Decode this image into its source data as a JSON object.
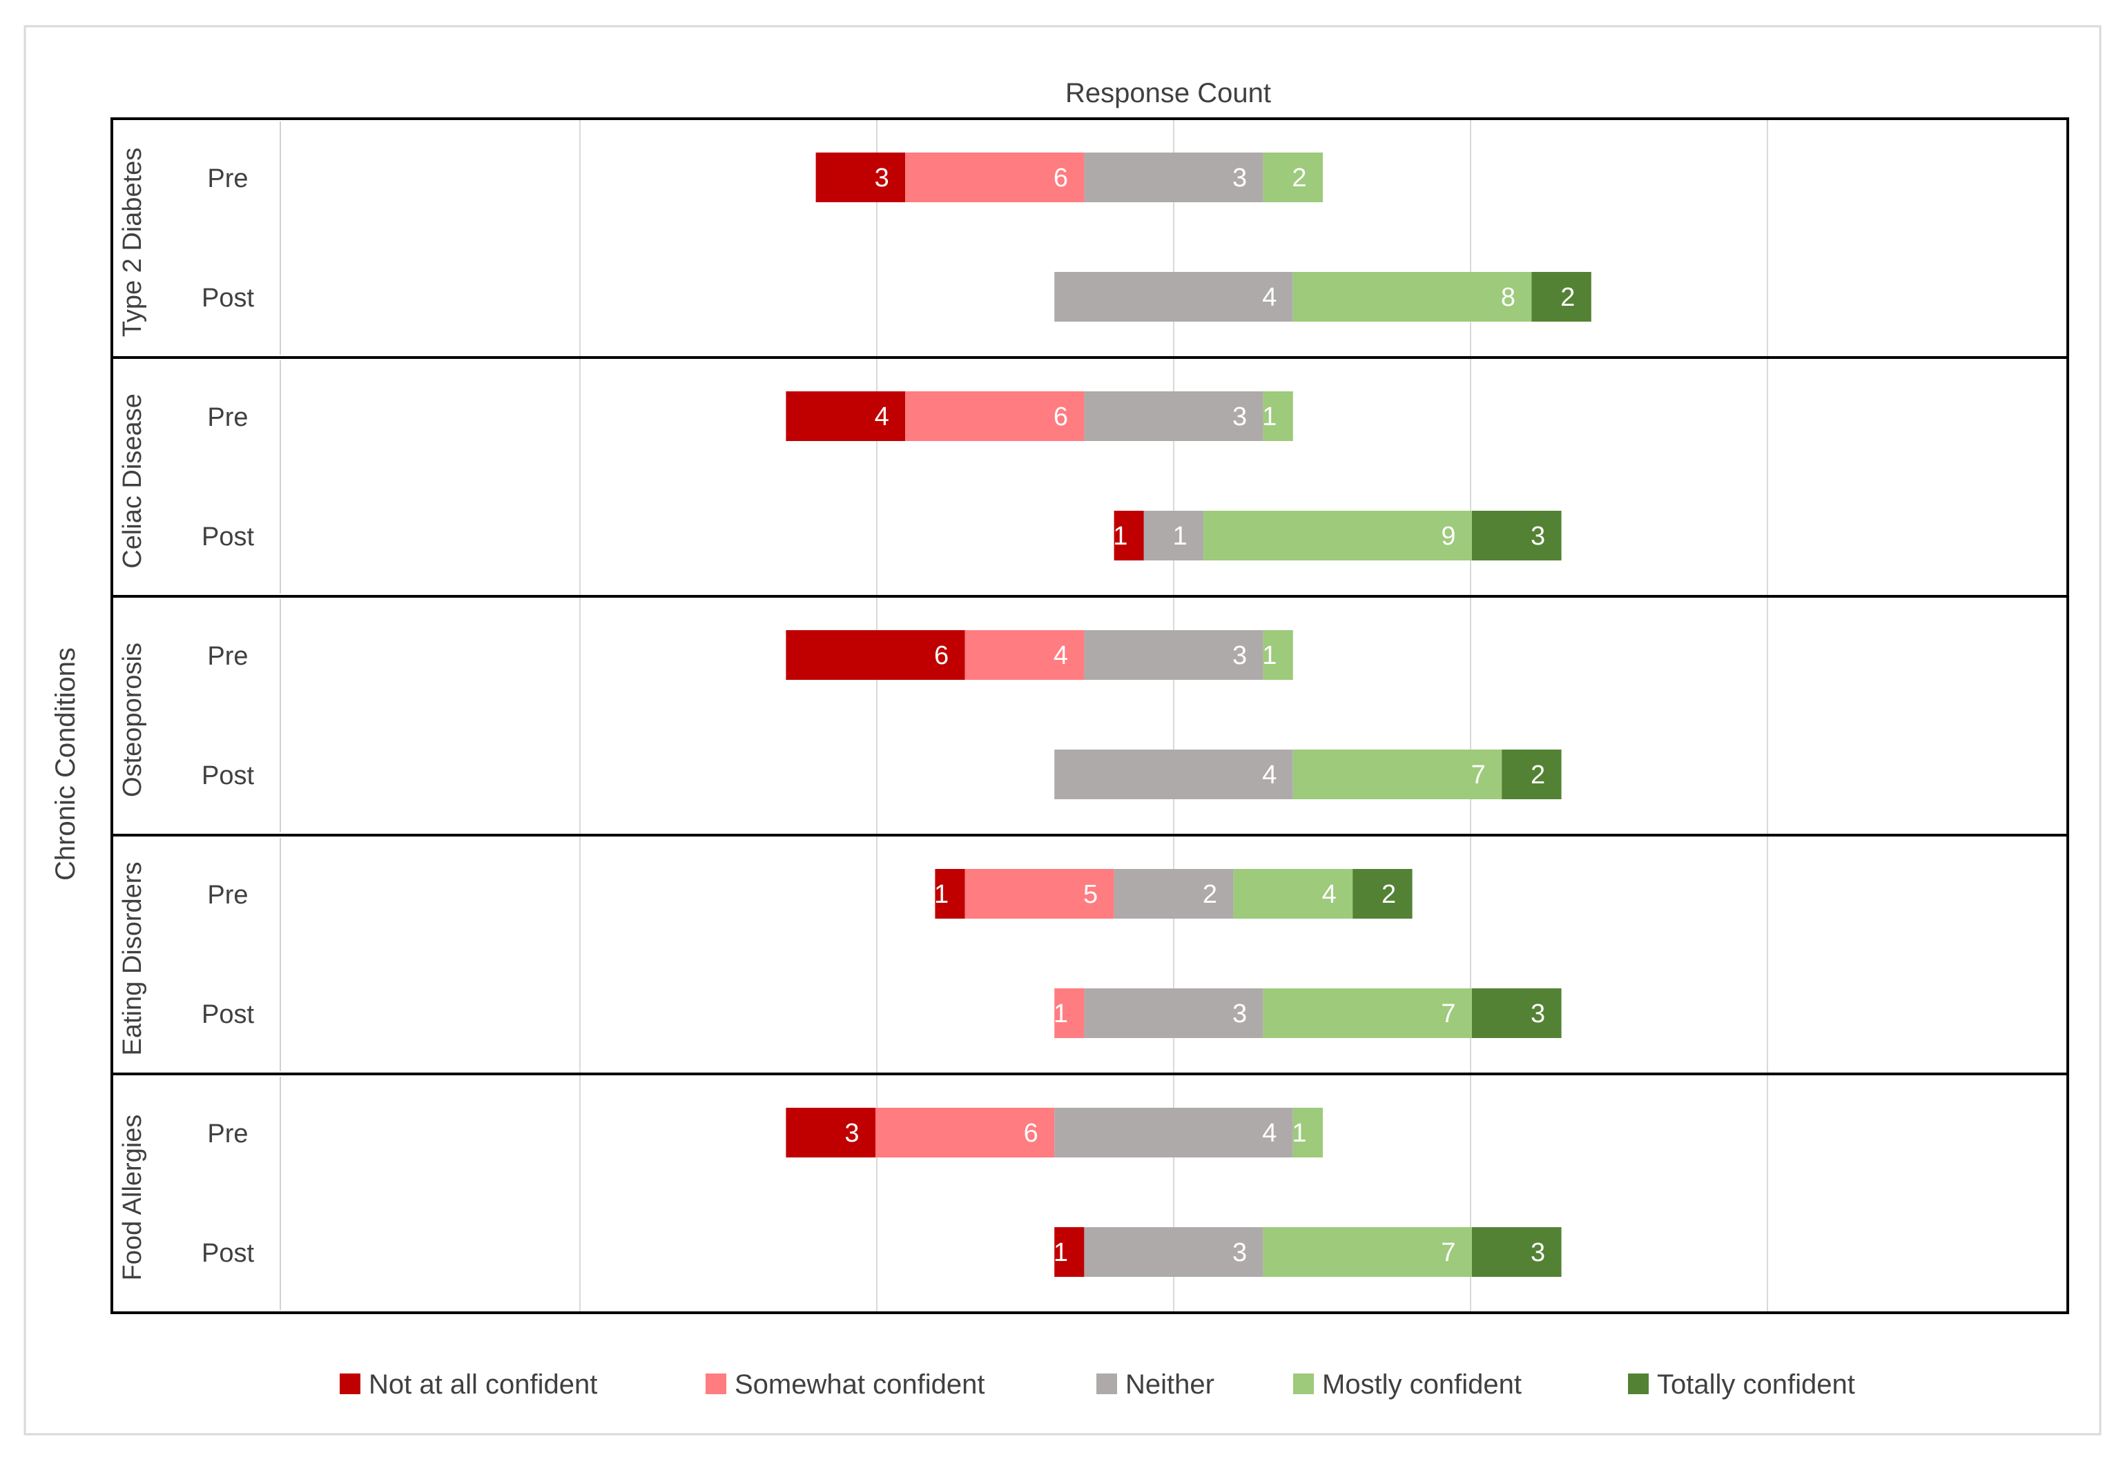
{
  "chart_data": {
    "type": "bar",
    "subtype": "diverging-stacked-horizontal",
    "title": "Response Count",
    "xlabel": "",
    "ylabel": "Chronic Conditions",
    "x_grid": true,
    "tick_labels_visible": false,
    "legend_position": "bottom",
    "response_levels": [
      {
        "name": "Not at all confident",
        "color": "#c00000"
      },
      {
        "name": "Somewhat confident",
        "color": "#ff7c80"
      },
      {
        "name": "Neither",
        "color": "#aeaaaa"
      },
      {
        "name": "Mostly confident",
        "color": "#9dca7b"
      },
      {
        "name": "Totally confident",
        "color": "#548235"
      }
    ],
    "groups": [
      {
        "name": "Type 2 Diabetes",
        "rows": [
          {
            "label": "Pre",
            "values": [
              3,
              6,
              6,
              2,
              0
            ],
            "labels": [
              "3",
              "6",
              "3",
              "2",
              ""
            ]
          },
          {
            "label": "Post",
            "values": [
              0,
              0,
              8,
              8,
              2
            ],
            "labels": [
              "",
              "",
              "4",
              "8",
              "2"
            ]
          }
        ]
      },
      {
        "name": "Celiac Disease",
        "rows": [
          {
            "label": "Pre",
            "values": [
              4,
              6,
              6,
              1,
              0
            ],
            "labels": [
              "4",
              "6",
              "3",
              "1",
              ""
            ]
          },
          {
            "label": "Post",
            "values": [
              1,
              0,
              2,
              9,
              3
            ],
            "labels": [
              "1",
              "",
              "1",
              "9",
              "3"
            ]
          }
        ]
      },
      {
        "name": "Osteoporosis",
        "rows": [
          {
            "label": "Pre",
            "values": [
              6,
              4,
              6,
              1,
              0
            ],
            "labels": [
              "6",
              "4",
              "3",
              "1",
              ""
            ]
          },
          {
            "label": "Post",
            "values": [
              0,
              0,
              8,
              7,
              2
            ],
            "labels": [
              "",
              "",
              "4",
              "7",
              "2"
            ]
          }
        ]
      },
      {
        "name": "Eating Disorders",
        "rows": [
          {
            "label": "Pre",
            "values": [
              1,
              5,
              4,
              4,
              2
            ],
            "labels": [
              "1",
              "5",
              "2",
              "4",
              "2"
            ]
          },
          {
            "label": "Post",
            "values": [
              0,
              1,
              6,
              7,
              3
            ],
            "labels": [
              "",
              "1",
              "3",
              "7",
              "3"
            ]
          }
        ]
      },
      {
        "name": "Food Allergies",
        "rows": [
          {
            "label": "Pre",
            "values": [
              3,
              6,
              8,
              1,
              0
            ],
            "labels": [
              "3",
              "6",
              "4",
              "1",
              ""
            ]
          },
          {
            "label": "Post",
            "values": [
              1,
              0,
              6,
              7,
              3
            ],
            "labels": [
              "1",
              "",
              "3",
              "7",
              "3"
            ]
          }
        ]
      }
    ],
    "note": "Neither values are displayed as split halves around the neutral midpoint; values array holds the full visual width (2x displayed label)."
  }
}
